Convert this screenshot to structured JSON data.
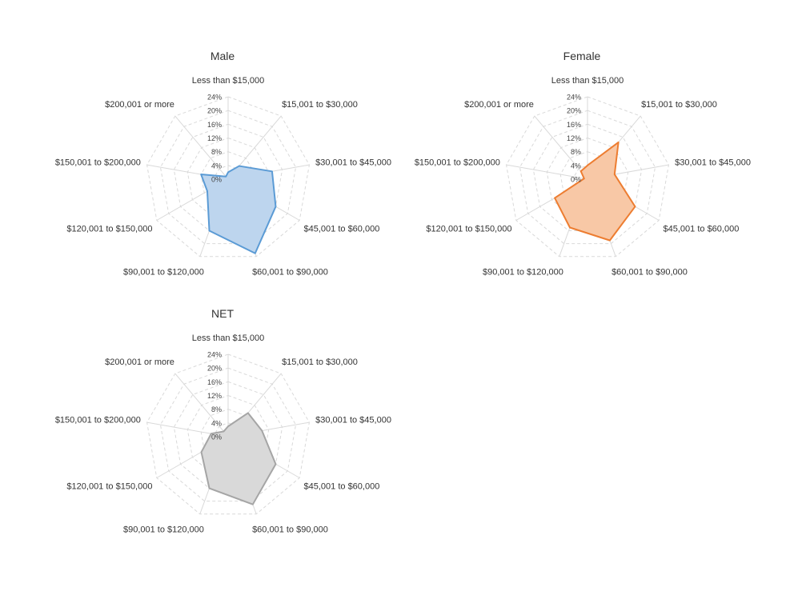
{
  "chart_data": [
    {
      "type": "radar",
      "title": "Male",
      "categories": [
        "Less than $15,000",
        "$15,001 to $30,000",
        "$30,001 to $45,000",
        "$45,001 to $60,000",
        "$60,001 to $90,000",
        "$90,001 to $120,000",
        "$120,001 to $150,000",
        "$150,001 to $200,000",
        "$200,001 or more"
      ],
      "ticks": [
        "0%",
        "4%",
        "8%",
        "12%",
        "16%",
        "20%",
        "24%"
      ],
      "rlim": [
        0,
        24
      ],
      "series": [
        {
          "values": [
            2.0,
            5.0,
            13.0,
            16.0,
            23.0,
            16.0,
            7.0,
            8.0,
            1.0
          ],
          "color": "#5B9BD5",
          "fill": "#BDD5EE"
        }
      ]
    },
    {
      "type": "radar",
      "title": "Female",
      "categories": [
        "Less than $15,000",
        "$15,001 to $30,000",
        "$30,001 to $45,000",
        "$45,001 to $60,000",
        "$60,001 to $90,000",
        "$90,001 to $120,000",
        "$120,001 to $150,000",
        "$150,001 to $200,000",
        "$200,001 or more"
      ],
      "ticks": [
        "0%",
        "4%",
        "8%",
        "12%",
        "16%",
        "20%",
        "24%"
      ],
      "rlim": [
        0,
        24
      ],
      "series": [
        {
          "values": [
            4.0,
            14.0,
            8.0,
            16.0,
            19.0,
            15.0,
            11.0,
            1.0,
            3.0
          ],
          "color": "#ED7D31",
          "fill": "#F8C8A6"
        }
      ]
    },
    {
      "type": "radar",
      "title": "NET",
      "categories": [
        "Less than $15,000",
        "$15,001 to $30,000",
        "$30,001 to $45,000",
        "$45,001 to $60,000",
        "$60,001 to $90,000",
        "$90,001 to $120,000",
        "$120,001 to $150,000",
        "$150,001 to $200,000",
        "$200,001 or more"
      ],
      "ticks": [
        "0%",
        "4%",
        "8%",
        "12%",
        "16%",
        "20%",
        "24%"
      ],
      "rlim": [
        0,
        24
      ],
      "series": [
        {
          "values": [
            3.0,
            9.0,
            10.0,
            16.0,
            21.0,
            16.0,
            9.0,
            5.0,
            2.0
          ],
          "color": "#A5A5A5",
          "fill": "#D9D9D9"
        }
      ]
    }
  ]
}
